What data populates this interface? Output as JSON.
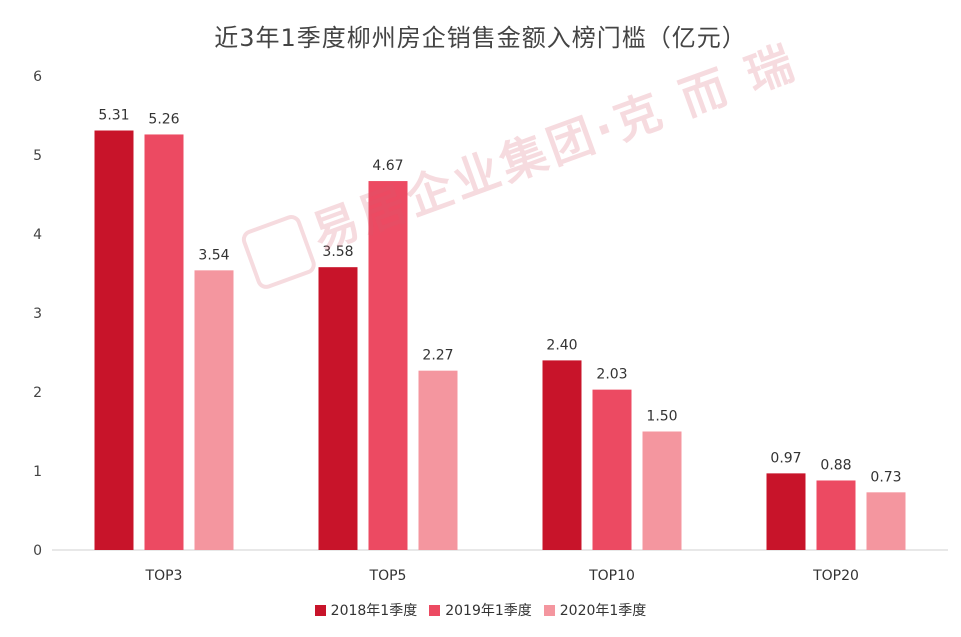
{
  "chart_data": {
    "type": "bar",
    "title": "近3年1季度柳州房企销售金额入榜门槛（亿元）",
    "categories": [
      "TOP3",
      "TOP5",
      "TOP10",
      "TOP20"
    ],
    "series": [
      {
        "name": "2018年1季度",
        "color": "#c8142a",
        "values": [
          5.31,
          3.58,
          2.4,
          0.97
        ],
        "labels": [
          "5.31",
          "3.58",
          "2.40",
          "0.97"
        ]
      },
      {
        "name": "2019年1季度",
        "color": "#ec4a62",
        "values": [
          5.26,
          4.67,
          2.03,
          0.88
        ],
        "labels": [
          "5.26",
          "4.67",
          "2.03",
          "0.88"
        ]
      },
      {
        "name": "2020年1季度",
        "color": "#f4969f",
        "values": [
          3.54,
          2.27,
          1.5,
          0.73
        ],
        "labels": [
          "3.54",
          "2.27",
          "1.50",
          "0.73"
        ]
      }
    ],
    "yticks": [
      "0",
      "1",
      "2",
      "3",
      "4",
      "5",
      "6"
    ],
    "ylim": [
      0,
      6
    ],
    "grid": false,
    "legend": "bottom-center"
  },
  "watermark": {
    "text": "易居企业集团·克 而 瑞"
  }
}
